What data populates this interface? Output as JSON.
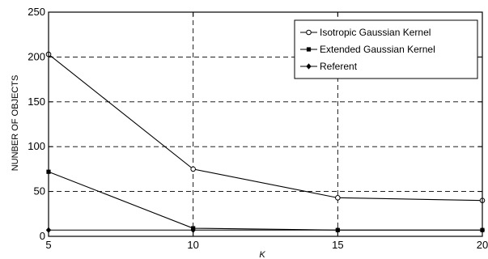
{
  "chart_data": {
    "type": "line",
    "title": "",
    "xlabel": "K",
    "ylabel": "NUNBER OF OBJECTS",
    "x": [
      5,
      10,
      15,
      20
    ],
    "xlim": [
      5,
      20
    ],
    "ylim": [
      0,
      250
    ],
    "xticks": [
      "5",
      "10",
      "15",
      "20"
    ],
    "yticks": [
      "0",
      "50",
      "100",
      "150",
      "200",
      "250"
    ],
    "grid": true,
    "legend_position": "top-right",
    "series": [
      {
        "name": "Isotropic Gaussian Kernel",
        "marker": "circle",
        "values": [
          203,
          75,
          43,
          40
        ]
      },
      {
        "name": "Extended Gaussian Kernel",
        "marker": "square",
        "values": [
          72,
          9,
          7,
          7
        ]
      },
      {
        "name": "Referent",
        "marker": "diamond",
        "values": [
          7,
          7,
          7,
          7
        ]
      }
    ]
  }
}
